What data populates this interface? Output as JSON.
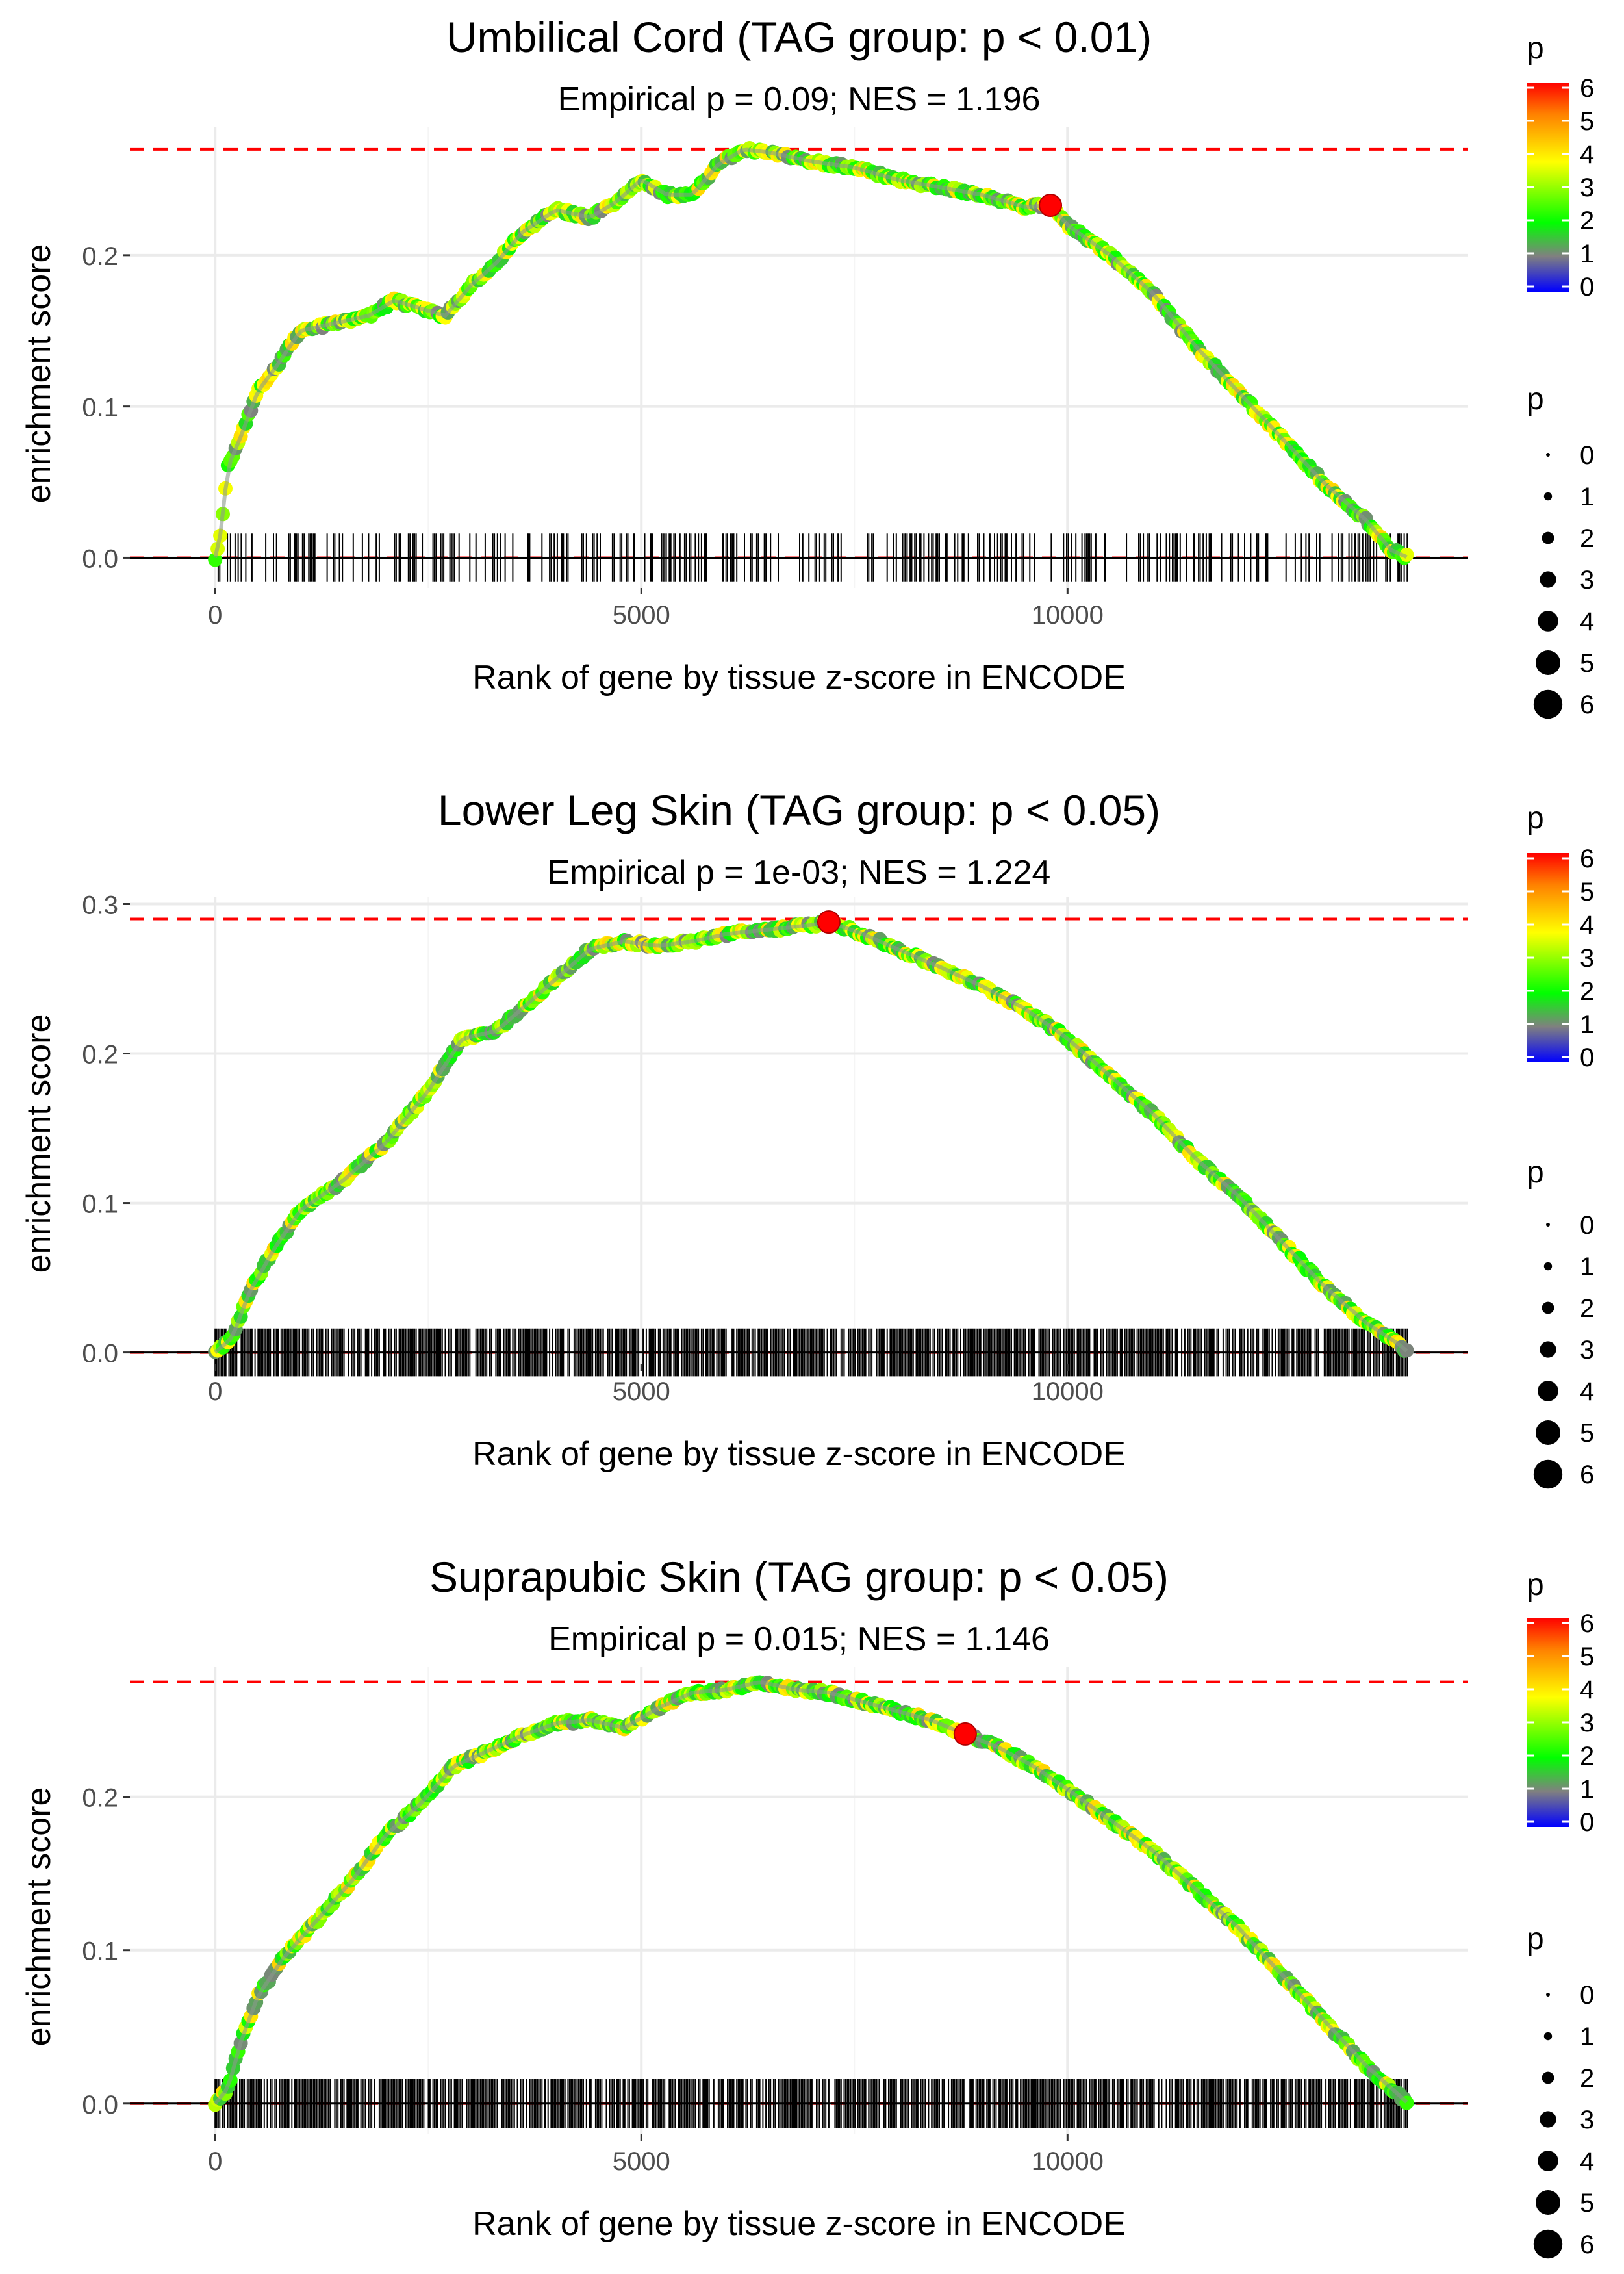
{
  "colors": {
    "threshold_line": "#ff0000",
    "highlight": "#ff0000",
    "rug": "#000000",
    "grid": "#ebebeb",
    "gradient": [
      "#0000ff",
      "#808080",
      "#00ff00",
      "#ffff00",
      "#ff8000",
      "#ff0000"
    ]
  },
  "chart_data": [
    {
      "type": "line",
      "title": "Umbilical Cord (TAG group: p < 0.01)",
      "subtitle": "Empirical p = 0.09; NES = 1.196",
      "xlabel": "Rank of gene by tissue z-score in ENCODE",
      "ylabel": "enrichment score",
      "xlim": [
        -1000,
        14700
      ],
      "ylim": [
        -0.02,
        0.285
      ],
      "xticks": [
        0,
        5000,
        10000
      ],
      "xtick_labels": [
        "0",
        "5000",
        "10000"
      ],
      "yticks": [
        0.0,
        0.1,
        0.2
      ],
      "ytick_labels": [
        "0.0",
        "0.1",
        "0.2"
      ],
      "max_es": 0.27,
      "peak_point": {
        "x": 9800,
        "y": 0.233,
        "p": 6
      },
      "rug_density": 0.35,
      "n_genes": 14000,
      "curve": [
        [
          0,
          0
        ],
        [
          50,
          0.01
        ],
        [
          150,
          0.06
        ],
        [
          300,
          0.08
        ],
        [
          500,
          0.11
        ],
        [
          700,
          0.125
        ],
        [
          1000,
          0.15
        ],
        [
          1400,
          0.155
        ],
        [
          1800,
          0.16
        ],
        [
          2100,
          0.17
        ],
        [
          2400,
          0.165
        ],
        [
          2700,
          0.16
        ],
        [
          3000,
          0.18
        ],
        [
          3300,
          0.195
        ],
        [
          3600,
          0.215
        ],
        [
          4000,
          0.23
        ],
        [
          4400,
          0.225
        ],
        [
          4700,
          0.235
        ],
        [
          5000,
          0.25
        ],
        [
          5300,
          0.24
        ],
        [
          5600,
          0.24
        ],
        [
          5900,
          0.26
        ],
        [
          6200,
          0.27
        ],
        [
          6500,
          0.268
        ],
        [
          7000,
          0.262
        ],
        [
          7500,
          0.258
        ],
        [
          8000,
          0.25
        ],
        [
          8500,
          0.245
        ],
        [
          9000,
          0.24
        ],
        [
          9500,
          0.232
        ],
        [
          9800,
          0.233
        ],
        [
          10000,
          0.22
        ],
        [
          10500,
          0.2
        ],
        [
          11000,
          0.175
        ],
        [
          11500,
          0.14
        ],
        [
          12000,
          0.11
        ],
        [
          12500,
          0.08
        ],
        [
          13000,
          0.05
        ],
        [
          13500,
          0.025
        ],
        [
          13800,
          0.005
        ],
        [
          14000,
          0
        ]
      ],
      "legend": {
        "color_title": "p",
        "color_ticks": [
          "0",
          "1",
          "2",
          "3",
          "4",
          "5",
          "6"
        ],
        "size_title": "p",
        "size_labels": [
          "0",
          "1",
          "2",
          "3",
          "4",
          "5",
          "6"
        ]
      }
    },
    {
      "type": "line",
      "title": "Lower Leg Skin (TAG group: p < 0.05)",
      "subtitle": "Empirical p = 1e-03; NES = 1.224",
      "xlabel": "Rank of gene by tissue z-score in ENCODE",
      "ylabel": "enrichment score",
      "xlim": [
        -1000,
        14700
      ],
      "ylim": [
        -0.008,
        0.305
      ],
      "xticks": [
        0,
        5000,
        10000
      ],
      "xtick_labels": [
        "0",
        "5000",
        "10000"
      ],
      "yticks": [
        0.0,
        0.1,
        0.2,
        0.3
      ],
      "ytick_labels": [
        "0.0",
        "0.1",
        "0.2",
        "0.3"
      ],
      "max_es": 0.29,
      "peak_point": {
        "x": 7200,
        "y": 0.288,
        "p": 6
      },
      "rug_density": 0.8,
      "n_genes": 14000,
      "curve": [
        [
          0,
          0
        ],
        [
          200,
          0.01
        ],
        [
          400,
          0.04
        ],
        [
          700,
          0.07
        ],
        [
          1000,
          0.095
        ],
        [
          1500,
          0.115
        ],
        [
          2000,
          0.14
        ],
        [
          2500,
          0.175
        ],
        [
          2900,
          0.21
        ],
        [
          3300,
          0.215
        ],
        [
          3700,
          0.235
        ],
        [
          4000,
          0.25
        ],
        [
          4400,
          0.27
        ],
        [
          4800,
          0.275
        ],
        [
          5200,
          0.272
        ],
        [
          5600,
          0.275
        ],
        [
          6000,
          0.28
        ],
        [
          6500,
          0.283
        ],
        [
          7000,
          0.286
        ],
        [
          7200,
          0.288
        ],
        [
          7600,
          0.28
        ],
        [
          8000,
          0.27
        ],
        [
          8500,
          0.258
        ],
        [
          9000,
          0.245
        ],
        [
          9500,
          0.23
        ],
        [
          10000,
          0.21
        ],
        [
          10500,
          0.185
        ],
        [
          11000,
          0.16
        ],
        [
          11500,
          0.13
        ],
        [
          12000,
          0.105
        ],
        [
          12500,
          0.075
        ],
        [
          13000,
          0.045
        ],
        [
          13500,
          0.02
        ],
        [
          13900,
          0.005
        ],
        [
          14000,
          0
        ]
      ],
      "legend": {
        "color_title": "p",
        "color_ticks": [
          "0",
          "1",
          "2",
          "3",
          "4",
          "5",
          "6"
        ],
        "size_title": "p",
        "size_labels": [
          "0",
          "1",
          "2",
          "3",
          "4",
          "5",
          "6"
        ]
      }
    },
    {
      "type": "line",
      "title": "Suprapubic Skin (TAG group: p < 0.05)",
      "subtitle": "Empirical p = 0.015; NES = 1.146",
      "xlabel": "Rank of gene by tissue z-score in ENCODE",
      "ylabel": "enrichment score",
      "xlim": [
        -1000,
        14700
      ],
      "ylim": [
        -0.02,
        0.285
      ],
      "xticks": [
        0,
        5000,
        10000
      ],
      "xtick_labels": [
        "0",
        "5000",
        "10000"
      ],
      "yticks": [
        0.0,
        0.1,
        0.2
      ],
      "ytick_labels": [
        "0.0",
        "0.1",
        "0.2"
      ],
      "max_es": 0.275,
      "peak_point": {
        "x": 8800,
        "y": 0.241,
        "p": 6
      },
      "rug_density": 0.8,
      "n_genes": 14000,
      "curve": [
        [
          0,
          0
        ],
        [
          150,
          0.01
        ],
        [
          300,
          0.04
        ],
        [
          500,
          0.07
        ],
        [
          800,
          0.095
        ],
        [
          1200,
          0.12
        ],
        [
          1600,
          0.145
        ],
        [
          2000,
          0.175
        ],
        [
          2400,
          0.195
        ],
        [
          2800,
          0.22
        ],
        [
          3200,
          0.23
        ],
        [
          3600,
          0.24
        ],
        [
          4000,
          0.248
        ],
        [
          4400,
          0.25
        ],
        [
          4800,
          0.245
        ],
        [
          5200,
          0.258
        ],
        [
          5600,
          0.268
        ],
        [
          6000,
          0.27
        ],
        [
          6400,
          0.275
        ],
        [
          6800,
          0.27
        ],
        [
          7200,
          0.268
        ],
        [
          7600,
          0.262
        ],
        [
          8000,
          0.256
        ],
        [
          8400,
          0.25
        ],
        [
          8800,
          0.241
        ],
        [
          9200,
          0.232
        ],
        [
          9600,
          0.22
        ],
        [
          10000,
          0.205
        ],
        [
          10500,
          0.185
        ],
        [
          11000,
          0.165
        ],
        [
          11500,
          0.14
        ],
        [
          12000,
          0.115
        ],
        [
          12500,
          0.085
        ],
        [
          13000,
          0.055
        ],
        [
          13500,
          0.025
        ],
        [
          13900,
          0.005
        ],
        [
          14000,
          0
        ]
      ],
      "legend": {
        "color_title": "p",
        "color_ticks": [
          "0",
          "1",
          "2",
          "3",
          "4",
          "5",
          "6"
        ],
        "size_title": "p",
        "size_labels": [
          "0",
          "1",
          "2",
          "3",
          "4",
          "5",
          "6"
        ]
      }
    }
  ]
}
